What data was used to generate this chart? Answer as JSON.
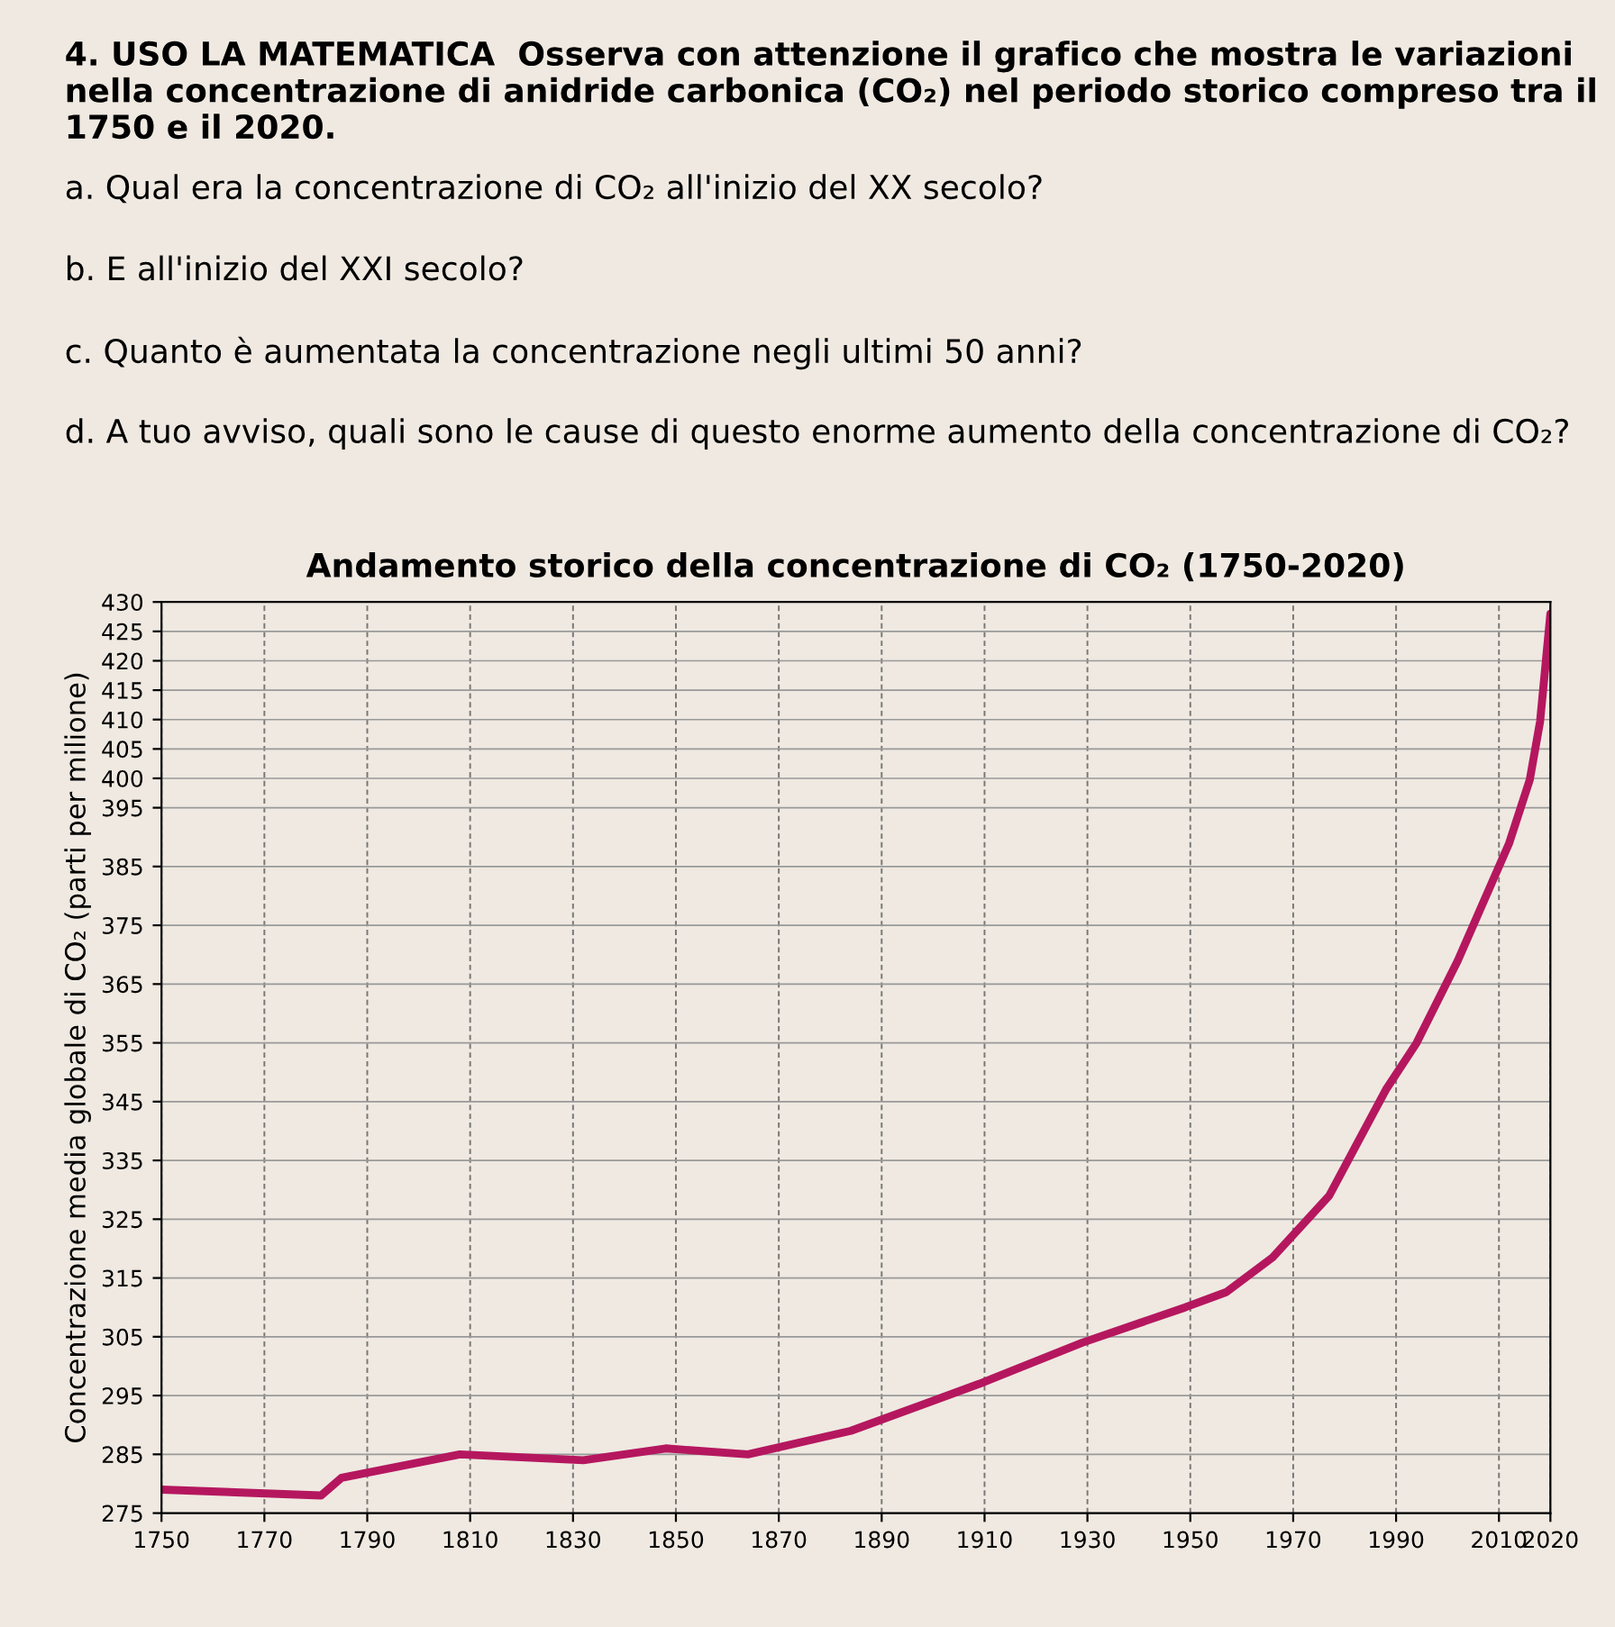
{
  "chart_data": {
    "type": "line",
    "title": "Andamento storico della concentrazione di CO₂ (1750-2020)",
    "ylabel": "Concentrazione media globale di CO₂ (parti per milione)",
    "annotations": [
      "4. USO LA MATEMATICA  Osserva con attenzione il grafico che mostra le variazioni nella concentrazione di anidride carbonica (CO₂) nel periodo storico compreso tra il 1750 e il 2020.",
      "a. Qual era la concentrazione di CO₂ all'inizio del XX secolo?",
      "b. E all'inizio del XXI secolo?",
      "c. Quanto è aumentata la concentrazione negli ultimi 50 anni?",
      "d. A tuo avviso, quali sono le cause di questo enorme aumento della concentrazione di CO₂?"
    ],
    "x": [
      1750,
      1781,
      1785,
      1808,
      1832,
      1848,
      1864,
      1884,
      1909,
      1929,
      1949,
      1957,
      1966,
      1977,
      1988,
      1994,
      2002,
      2012,
      2016,
      2018,
      2020
    ],
    "series": [
      {
        "color": "#b5175f",
        "values": [
          279,
          278,
          281,
          285,
          284,
          286,
          285,
          289,
          297,
          304,
          310,
          312.6,
          318.5,
          329,
          347,
          355,
          369,
          389,
          399.8,
          409.7,
          428
        ]
      }
    ],
    "xlim": [
      1750,
      2020
    ],
    "xticks": [
      1750,
      1770,
      1790,
      1810,
      1830,
      1850,
      1870,
      1890,
      1910,
      1930,
      1950,
      1970,
      1990,
      2010,
      2020
    ],
    "ylim": [
      275,
      430
    ],
    "yticks": [
      275,
      285,
      295,
      305,
      315,
      325,
      335,
      345,
      355,
      365,
      375,
      385,
      395,
      400,
      405,
      410,
      415,
      420,
      425,
      430
    ],
    "grid": true,
    "marker": "none",
    "line_style": "solid"
  }
}
